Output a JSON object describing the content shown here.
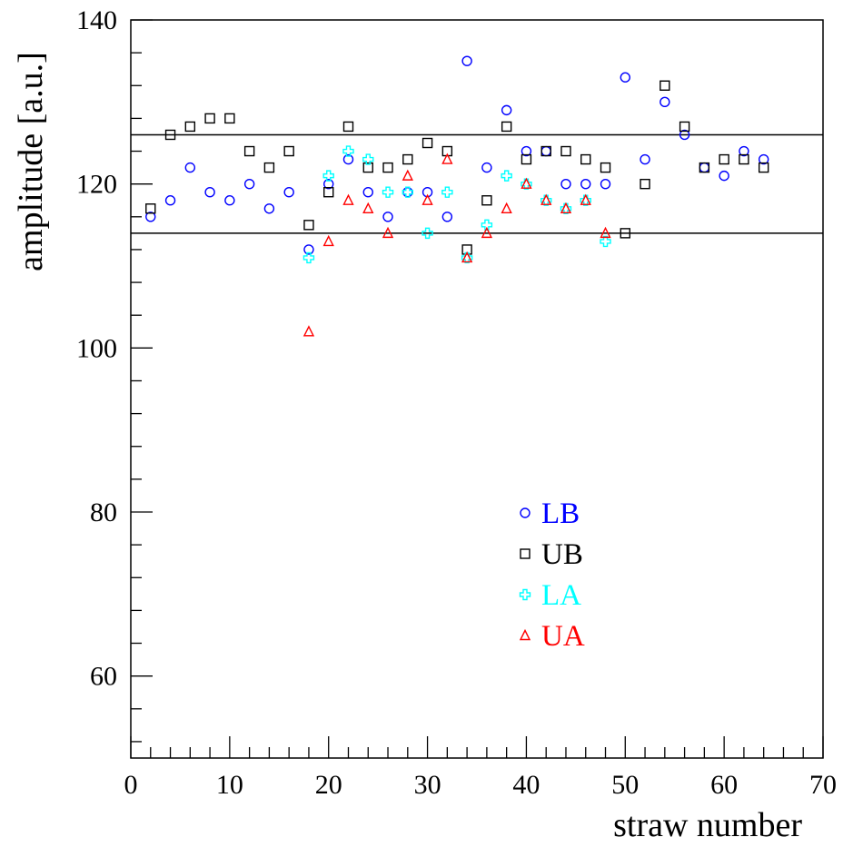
{
  "chart_data": {
    "type": "scatter",
    "title": "",
    "xlabel": "straw number",
    "ylabel": "amplitude [a.u.]",
    "xlim": [
      0,
      70
    ],
    "ylim": [
      50,
      140
    ],
    "x_ticks": [
      "0",
      "10",
      "20",
      "30",
      "40",
      "50",
      "60",
      "70"
    ],
    "y_ticks": [
      "60",
      "80",
      "100",
      "120",
      "140"
    ],
    "reference_lines": [
      126,
      114
    ],
    "legend_position": "center-right",
    "series": [
      {
        "name": "LB",
        "color": "#0000ff",
        "marker": "circle",
        "points": [
          [
            2,
            116
          ],
          [
            4,
            118
          ],
          [
            6,
            122
          ],
          [
            8,
            119
          ],
          [
            10,
            118
          ],
          [
            12,
            120
          ],
          [
            14,
            117
          ],
          [
            16,
            119
          ],
          [
            18,
            112
          ],
          [
            20,
            120
          ],
          [
            22,
            123
          ],
          [
            24,
            119
          ],
          [
            26,
            116
          ],
          [
            28,
            119
          ],
          [
            30,
            119
          ],
          [
            32,
            116
          ],
          [
            34,
            135
          ],
          [
            36,
            122
          ],
          [
            38,
            129
          ],
          [
            40,
            124
          ],
          [
            42,
            124
          ],
          [
            44,
            120
          ],
          [
            46,
            120
          ],
          [
            48,
            120
          ],
          [
            50,
            133
          ],
          [
            52,
            123
          ],
          [
            54,
            130
          ],
          [
            56,
            126
          ],
          [
            58,
            122
          ],
          [
            60,
            121
          ],
          [
            62,
            124
          ],
          [
            64,
            123
          ]
        ]
      },
      {
        "name": "UB",
        "color": "#000000",
        "marker": "square",
        "points": [
          [
            2,
            117
          ],
          [
            4,
            126
          ],
          [
            6,
            127
          ],
          [
            8,
            128
          ],
          [
            10,
            128
          ],
          [
            12,
            124
          ],
          [
            14,
            122
          ],
          [
            16,
            124
          ],
          [
            18,
            115
          ],
          [
            20,
            119
          ],
          [
            22,
            127
          ],
          [
            24,
            122
          ],
          [
            26,
            122
          ],
          [
            28,
            123
          ],
          [
            30,
            125
          ],
          [
            32,
            124
          ],
          [
            34,
            112
          ],
          [
            36,
            118
          ],
          [
            38,
            127
          ],
          [
            40,
            123
          ],
          [
            42,
            124
          ],
          [
            44,
            124
          ],
          [
            46,
            123
          ],
          [
            48,
            122
          ],
          [
            50,
            114
          ],
          [
            52,
            120
          ],
          [
            54,
            132
          ],
          [
            56,
            127
          ],
          [
            58,
            122
          ],
          [
            60,
            123
          ],
          [
            62,
            123
          ],
          [
            64,
            122
          ]
        ]
      },
      {
        "name": "LA",
        "color": "#00ffff",
        "marker": "cross",
        "points": [
          [
            18,
            111
          ],
          [
            20,
            121
          ],
          [
            22,
            124
          ],
          [
            24,
            123
          ],
          [
            26,
            119
          ],
          [
            28,
            119
          ],
          [
            30,
            114
          ],
          [
            32,
            119
          ],
          [
            34,
            111
          ],
          [
            36,
            115
          ],
          [
            38,
            121
          ],
          [
            40,
            120
          ],
          [
            42,
            118
          ],
          [
            44,
            117
          ],
          [
            46,
            118
          ],
          [
            48,
            113
          ]
        ]
      },
      {
        "name": "UA",
        "color": "#ff0000",
        "marker": "triangle",
        "points": [
          [
            18,
            102
          ],
          [
            20,
            113
          ],
          [
            22,
            118
          ],
          [
            24,
            117
          ],
          [
            26,
            114
          ],
          [
            28,
            121
          ],
          [
            30,
            118
          ],
          [
            32,
            123
          ],
          [
            34,
            111
          ],
          [
            36,
            114
          ],
          [
            38,
            117
          ],
          [
            40,
            120
          ],
          [
            42,
            118
          ],
          [
            44,
            117
          ],
          [
            46,
            118
          ],
          [
            48,
            114
          ]
        ]
      }
    ]
  }
}
